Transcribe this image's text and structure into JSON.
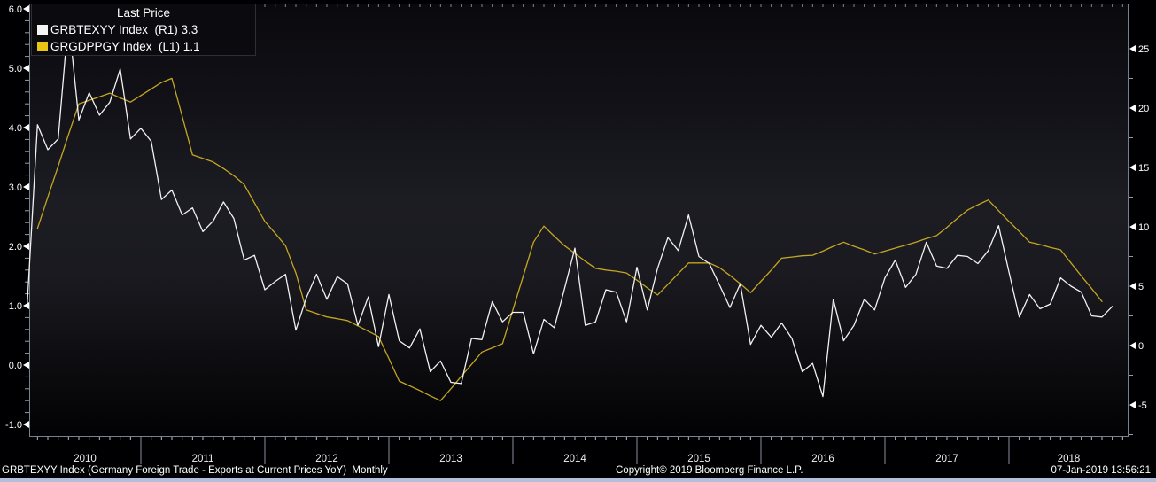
{
  "legend": {
    "title": "Last Price",
    "series": [
      {
        "label": "GRBTEXYY Index  (R1) 3.3",
        "swatch_color": "#f5f5f5"
      },
      {
        "label": "GRGDPPGY Index  (L1) 1.1",
        "swatch_color": "#e9c616"
      }
    ]
  },
  "footer": {
    "description": "GRBTEXYY Index (Germany Foreign Trade - Exports at Current Prices YoY)  Monthly",
    "copyright": "Copyright© 2019 Bloomberg Finance L.P.",
    "timestamp": "07-Jan-2019 13:56:21"
  },
  "chart_data": {
    "type": "line",
    "title": "Last Price",
    "frequency": "Monthly",
    "x_start": "2010-02",
    "x_end": "2018-11",
    "x_year_labels": [
      "2010",
      "2011",
      "2012",
      "2013",
      "2014",
      "2015",
      "2016",
      "2017",
      "2018"
    ],
    "left_axis": {
      "label": "GRGDPPGY (L1)",
      "tick_labels": [
        "6.0",
        "5.0",
        "4.0",
        "3.0",
        "2.0",
        "1.0",
        "0.0",
        "-1.0"
      ],
      "tick_values": [
        6.0,
        5.0,
        4.0,
        3.0,
        2.0,
        1.0,
        0.0,
        -1.0
      ],
      "minor_step": 0.2,
      "ylim": [
        -1.21,
        6.09
      ]
    },
    "right_axis": {
      "label": "GRBTEXYY (R1)",
      "tick_labels": [
        "25",
        "20",
        "15",
        "10",
        "5",
        "0",
        "-5"
      ],
      "tick_values": [
        25,
        20,
        15,
        10,
        5,
        0,
        -5
      ],
      "minor_step": 2.5,
      "ylim": [
        -7.69,
        28.8
      ]
    },
    "grid": false,
    "legend_position": "top-left",
    "series": [
      {
        "name": "GRBTEXYY Index",
        "scale": "R1",
        "axis": "right",
        "last_value": 3.3,
        "color": "#f2f2f2",
        "start_month": "2010-02",
        "values": [
          3.4,
          18.6,
          16.5,
          17.4,
          27.6,
          19.0,
          21.3,
          19.4,
          20.5,
          23.3,
          17.4,
          18.3,
          17.2,
          12.3,
          13.1,
          11.0,
          11.6,
          9.6,
          10.5,
          12.1,
          10.7,
          7.2,
          7.6,
          4.7,
          5.4,
          6.0,
          1.3,
          4.0,
          6.0,
          3.9,
          5.8,
          5.2,
          1.7,
          4.1,
          -0.1,
          4.3,
          0.4,
          -0.2,
          1.4,
          -2.2,
          -1.3,
          -3.1,
          -3.2,
          0.6,
          0.5,
          3.7,
          2.0,
          2.8,
          2.8,
          -0.7,
          2.2,
          1.5,
          4.8,
          8.2,
          1.7,
          2.0,
          4.7,
          4.5,
          2.0,
          6.6,
          3.0,
          6.5,
          9.1,
          8.0,
          11.0,
          7.5,
          6.9,
          5.1,
          3.2,
          5.2,
          0.1,
          1.7,
          0.7,
          1.9,
          0.6,
          -2.2,
          -1.5,
          -4.3,
          3.9,
          0.4,
          1.7,
          3.9,
          3.0,
          5.7,
          7.2,
          4.9,
          6.0,
          8.7,
          6.7,
          6.5,
          7.6,
          7.5,
          6.9,
          8.0,
          10.1,
          6.2,
          2.4,
          4.3,
          3.1,
          3.5,
          5.7,
          5.0,
          4.5,
          2.5,
          2.4,
          3.3
        ]
      },
      {
        "name": "GRGDPPGY Index",
        "scale": "L1",
        "axis": "left",
        "last_value": 1.1,
        "color": "#c4a622",
        "start_month": "2010-02",
        "values": [
          null,
          2.3,
          2.83,
          3.35,
          3.88,
          4.4,
          4.46,
          4.52,
          4.58,
          4.5,
          4.43,
          4.54,
          4.65,
          4.76,
          4.83,
          4.19,
          3.54,
          3.48,
          3.42,
          3.31,
          3.19,
          3.04,
          2.73,
          2.42,
          2.22,
          2.01,
          1.55,
          0.93,
          0.87,
          0.81,
          0.78,
          0.75,
          0.66,
          0.57,
          0.48,
          0.11,
          -0.27,
          -0.35,
          -0.43,
          -0.52,
          -0.6,
          -0.4,
          -0.19,
          0.01,
          0.22,
          0.29,
          0.36,
          0.93,
          1.5,
          2.07,
          2.34,
          2.17,
          2.01,
          1.88,
          1.75,
          1.63,
          1.6,
          1.58,
          1.55,
          1.43,
          1.3,
          1.18,
          1.36,
          1.54,
          1.72,
          1.72,
          1.72,
          1.64,
          1.51,
          1.37,
          1.22,
          1.41,
          1.6,
          1.8,
          1.82,
          1.84,
          1.85,
          1.92,
          2.0,
          2.07,
          2.0,
          1.94,
          1.87,
          1.92,
          1.97,
          2.02,
          2.07,
          2.13,
          2.18,
          2.32,
          2.47,
          2.61,
          2.7,
          2.78,
          2.6,
          2.42,
          2.25,
          2.07,
          2.03,
          1.98,
          1.94,
          1.72,
          1.5,
          1.29,
          1.07,
          null
        ]
      }
    ]
  }
}
